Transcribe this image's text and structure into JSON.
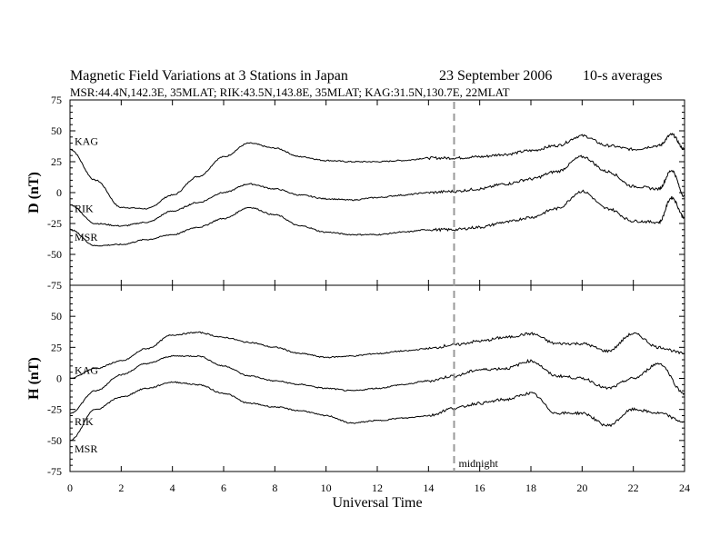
{
  "chart_data": {
    "type": "line",
    "title_main": "Magnetic Field Variations at 3 Stations in Japan",
    "title_date": "23 September 2006",
    "title_avg": "10-s averages",
    "subtitle": "MSR:44.4N,142.3E, 35MLAT;  RIK:43.5N,143.8E, 35MLAT;  KAG:31.5N,130.7E, 22MLAT",
    "xlabel": "Universal Time",
    "xlim": [
      0,
      24
    ],
    "xticks": [
      "0",
      "2",
      "4",
      "6",
      "8",
      "10",
      "12",
      "14",
      "16",
      "18",
      "20",
      "22",
      "24"
    ],
    "annotation": "midnight",
    "annotation_x": 15,
    "panels": [
      {
        "ylabel": "D (nT)",
        "ylim": [
          -75,
          75
        ],
        "yticks": [
          "75",
          "50",
          "25",
          "0",
          "-25",
          "-50",
          "-75"
        ],
        "series": [
          {
            "name": "KAG",
            "x": [
              0,
              1,
              2,
              3,
              4,
              5,
              6,
              7,
              8,
              9,
              10,
              11,
              12,
              13,
              14,
              15,
              16,
              17,
              18,
              19,
              20,
              21,
              22,
              23,
              23.5,
              24
            ],
            "values": [
              35,
              10,
              -12,
              -13,
              -2,
              13,
              29,
              40,
              36,
              29,
              26,
              25,
              25,
              26,
              28,
              28,
              29,
              31,
              34,
              38,
              46,
              38,
              35,
              38,
              47,
              35
            ]
          },
          {
            "name": "RIK",
            "x": [
              0,
              1,
              2,
              3,
              4,
              5,
              6,
              7,
              8,
              9,
              10,
              11,
              12,
              13,
              14,
              15,
              16,
              17,
              18,
              19,
              20,
              21,
              22,
              23,
              23.5,
              24
            ],
            "values": [
              -10,
              -25,
              -27,
              -24,
              -15,
              -8,
              0,
              7,
              3,
              -2,
              -5,
              -6,
              -4,
              -2,
              0,
              1,
              3,
              7,
              11,
              17,
              29,
              17,
              5,
              3,
              18,
              -3
            ]
          },
          {
            "name": "MSR",
            "x": [
              0,
              1,
              2,
              3,
              4,
              5,
              6,
              7,
              8,
              9,
              10,
              11,
              12,
              13,
              14,
              15,
              16,
              17,
              18,
              19,
              20,
              21,
              22,
              23,
              23.5,
              24
            ],
            "values": [
              -30,
              -43,
              -42,
              -38,
              -34,
              -28,
              -21,
              -12,
              -18,
              -27,
              -32,
              -34,
              -34,
              -32,
              -30,
              -30,
              -28,
              -24,
              -20,
              -13,
              1,
              -13,
              -23,
              -24,
              -4,
              -20
            ]
          }
        ]
      },
      {
        "ylabel": "H (nT)",
        "ylim": [
          -75,
          75
        ],
        "yticks": [
          "75",
          "50",
          "25",
          "0",
          "-25",
          "-50",
          "-75"
        ],
        "series": [
          {
            "name": "KAG",
            "x": [
              0,
              1,
              2,
              3,
              4,
              5,
              6,
              7,
              8,
              9,
              10,
              11,
              12,
              13,
              14,
              15,
              16,
              17,
              18,
              19,
              20,
              21,
              22,
              23,
              24
            ],
            "values": [
              0,
              8,
              14,
              24,
              35,
              37,
              33,
              29,
              25,
              20,
              17,
              18,
              20,
              22,
              24,
              27,
              30,
              33,
              36,
              28,
              28,
              22,
              36,
              25,
              20
            ]
          },
          {
            "name": "RIK",
            "x": [
              0,
              1,
              2,
              3,
              4,
              5,
              6,
              7,
              8,
              9,
              10,
              11,
              12,
              13,
              14,
              15,
              16,
              17,
              18,
              19,
              20,
              21,
              22,
              23,
              24
            ],
            "values": [
              -28,
              -10,
              3,
              12,
              18,
              18,
              10,
              2,
              -2,
              -5,
              -8,
              -10,
              -8,
              -5,
              -2,
              2,
              7,
              8,
              14,
              2,
              0,
              -8,
              0,
              12,
              -12
            ]
          },
          {
            "name": "MSR",
            "x": [
              0,
              1,
              2,
              3,
              4,
              5,
              6,
              7,
              8,
              9,
              10,
              11,
              12,
              13,
              14,
              15,
              16,
              17,
              18,
              19,
              20,
              21,
              22,
              23,
              24
            ],
            "values": [
              -50,
              -25,
              -15,
              -8,
              -3,
              -5,
              -12,
              -20,
              -23,
              -26,
              -30,
              -36,
              -34,
              -32,
              -30,
              -24,
              -20,
              -17,
              -12,
              -28,
              -28,
              -38,
              -25,
              -28,
              -35
            ]
          }
        ]
      }
    ]
  }
}
